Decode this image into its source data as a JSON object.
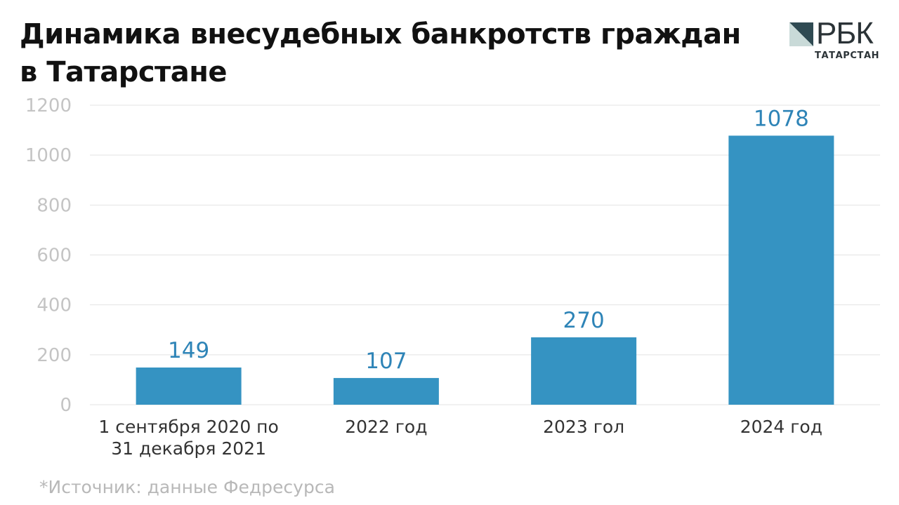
{
  "title": {
    "line1": "Динамика внесудебных банкротств граждан",
    "line2": "в Татарстане"
  },
  "logo": {
    "brand": "РБК",
    "region": "ТАТАРСТАН",
    "colors": {
      "dark": "#2f4a52",
      "green": "#2e8f6a",
      "light": "#c9dad8"
    }
  },
  "source": "*Источник: данные Федресурса",
  "colors": {
    "bar": "#3593c2",
    "value_label": "#2e84b7",
    "grid": "#e3e3e3",
    "axis_text": "#c4c4c4",
    "category_text": "#333333"
  },
  "chart_data": {
    "type": "bar",
    "categories": [
      [
        "1 сентября 2020 по",
        "31 декабря 2021"
      ],
      [
        "2022 год"
      ],
      [
        "2023 гол"
      ],
      [
        "2024 год"
      ]
    ],
    "values": [
      149,
      107,
      270,
      1078
    ],
    "data_labels": [
      "149",
      "107",
      "270",
      "1078"
    ],
    "ylim": [
      0,
      1200
    ],
    "yticks": [
      0,
      200,
      400,
      600,
      800,
      1000,
      1200
    ],
    "grid": true,
    "legend": false
  }
}
